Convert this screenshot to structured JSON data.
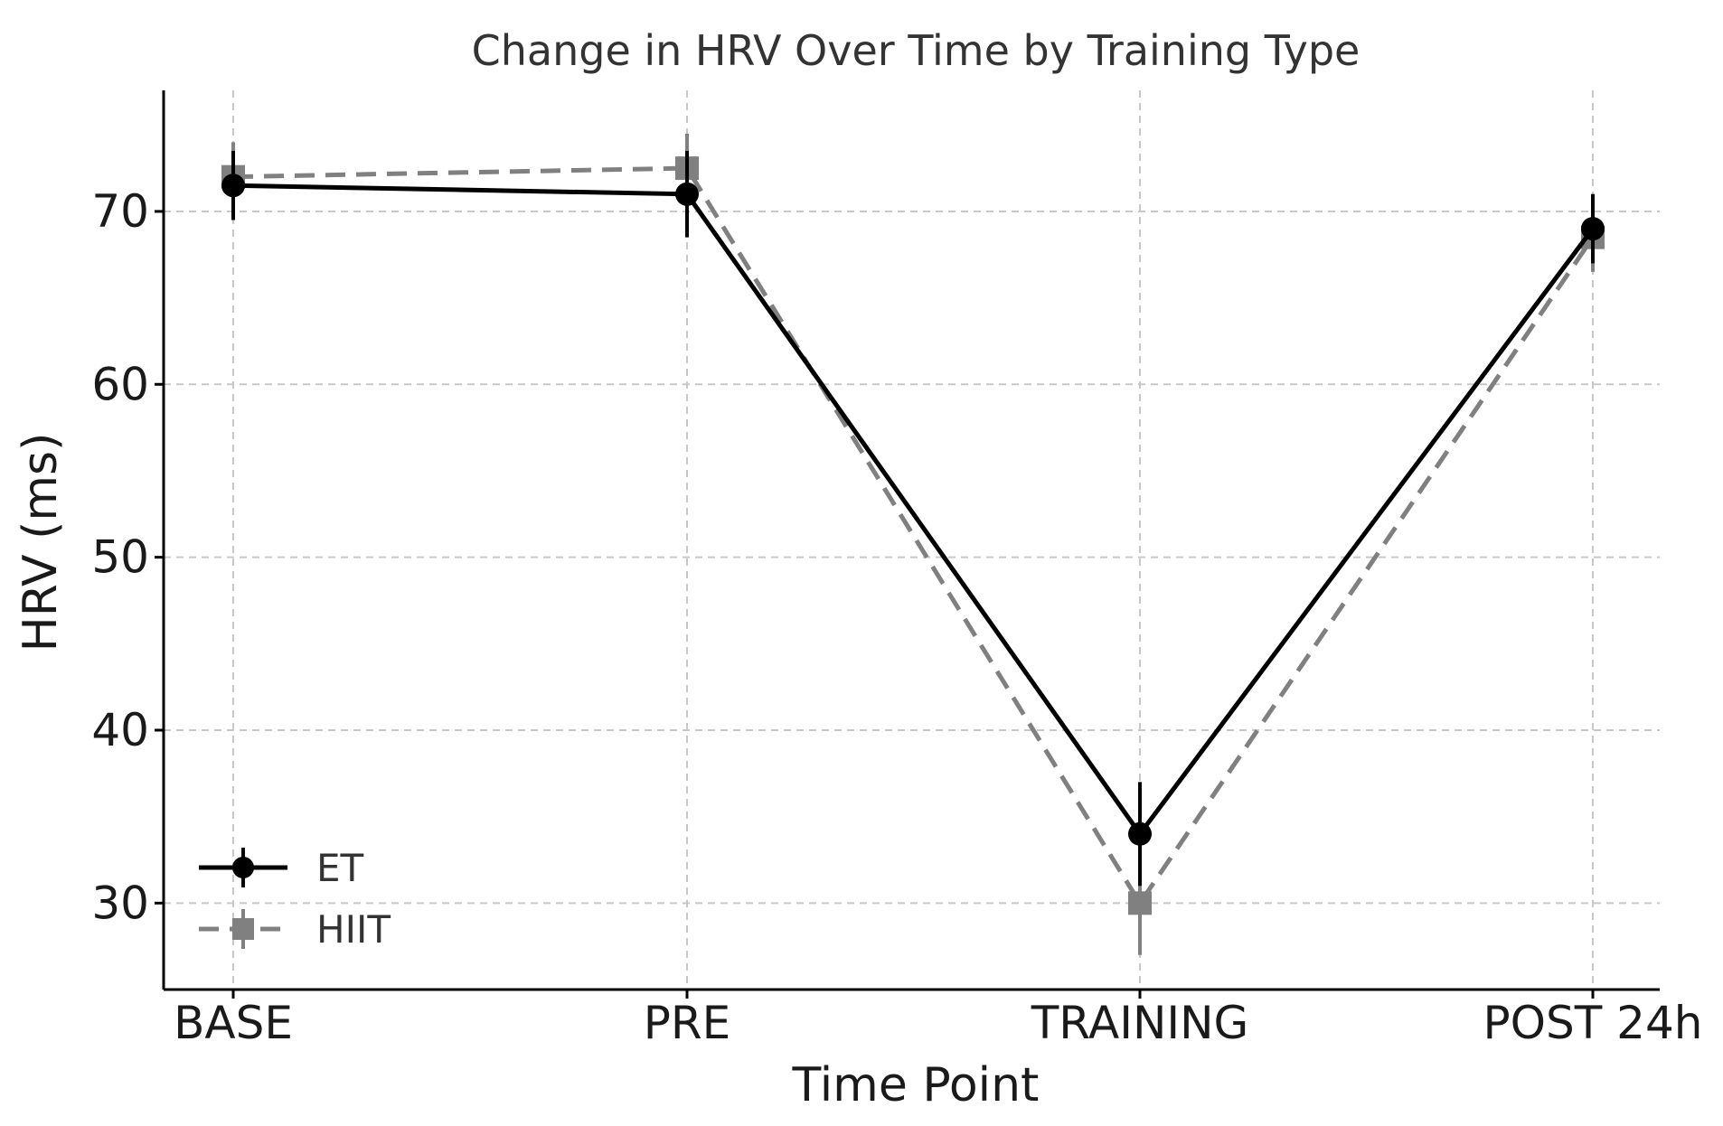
{
  "chart_data": {
    "type": "line",
    "title": "Change in HRV Over Time by Training Type",
    "xlabel": "Time Point",
    "ylabel": "HRV (ms)",
    "categories": [
      "BASE",
      "PRE",
      "TRAINING",
      "POST 24h"
    ],
    "ylim": [
      25,
      77
    ],
    "yticks": [
      30,
      40,
      50,
      60,
      70
    ],
    "grid": true,
    "legend_position": "bottom-left",
    "series": [
      {
        "name": "ET",
        "values": [
          71.5,
          71,
          34,
          69
        ],
        "errors": [
          2,
          2.5,
          3,
          2
        ],
        "color": "#000000",
        "marker": "circle",
        "line_style": "solid"
      },
      {
        "name": "HIIT",
        "values": [
          72,
          72.5,
          30,
          68.5
        ],
        "errors": [
          2,
          2,
          3,
          2
        ],
        "color": "#808080",
        "marker": "square",
        "line_style": "dashed"
      }
    ]
  }
}
